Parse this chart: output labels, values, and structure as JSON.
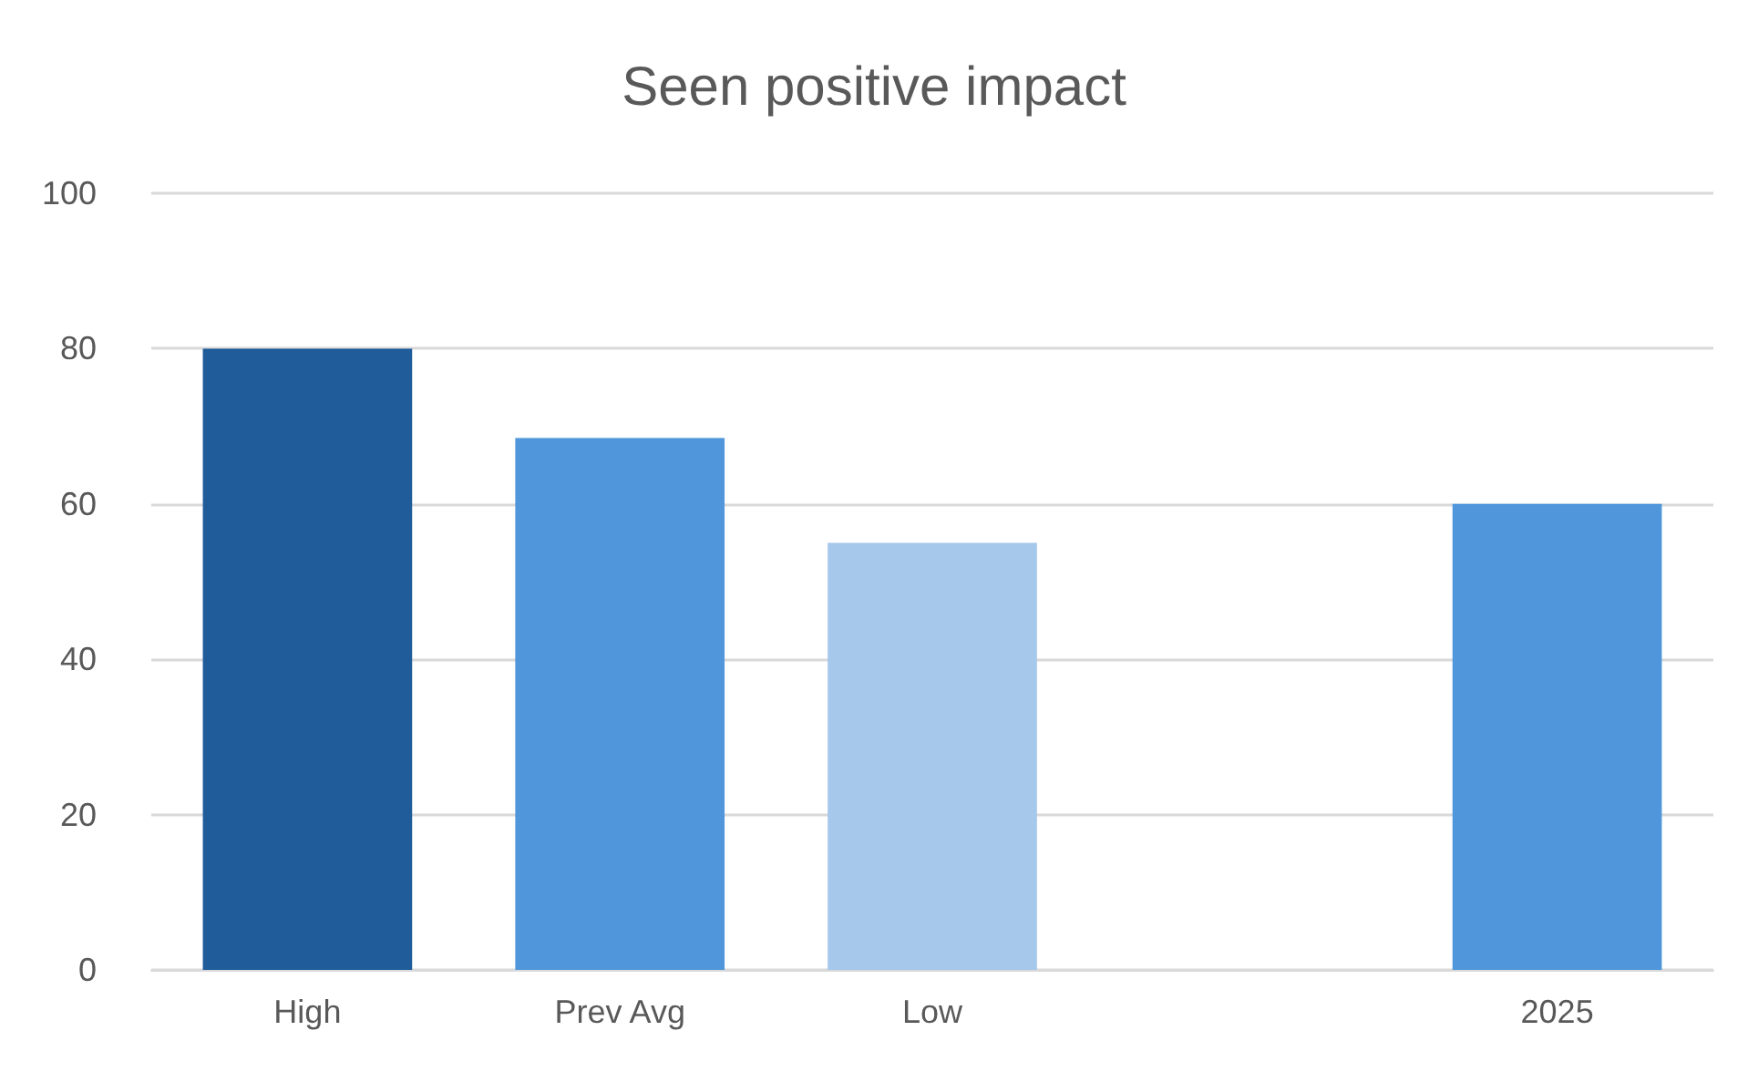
{
  "chart_data": {
    "type": "bar",
    "title": "Seen positive impact",
    "categories": [
      "High",
      "Prev Avg",
      "Low",
      null,
      "2025"
    ],
    "values": [
      80,
      68.5,
      55,
      null,
      60
    ],
    "colors": [
      "#1f5c99",
      "#4f96da",
      "#a6c8eb",
      null,
      "#4f96da"
    ],
    "ylim": [
      0,
      100
    ],
    "yticks": [
      0,
      20,
      40,
      60,
      80,
      100
    ],
    "grid": "y"
  }
}
